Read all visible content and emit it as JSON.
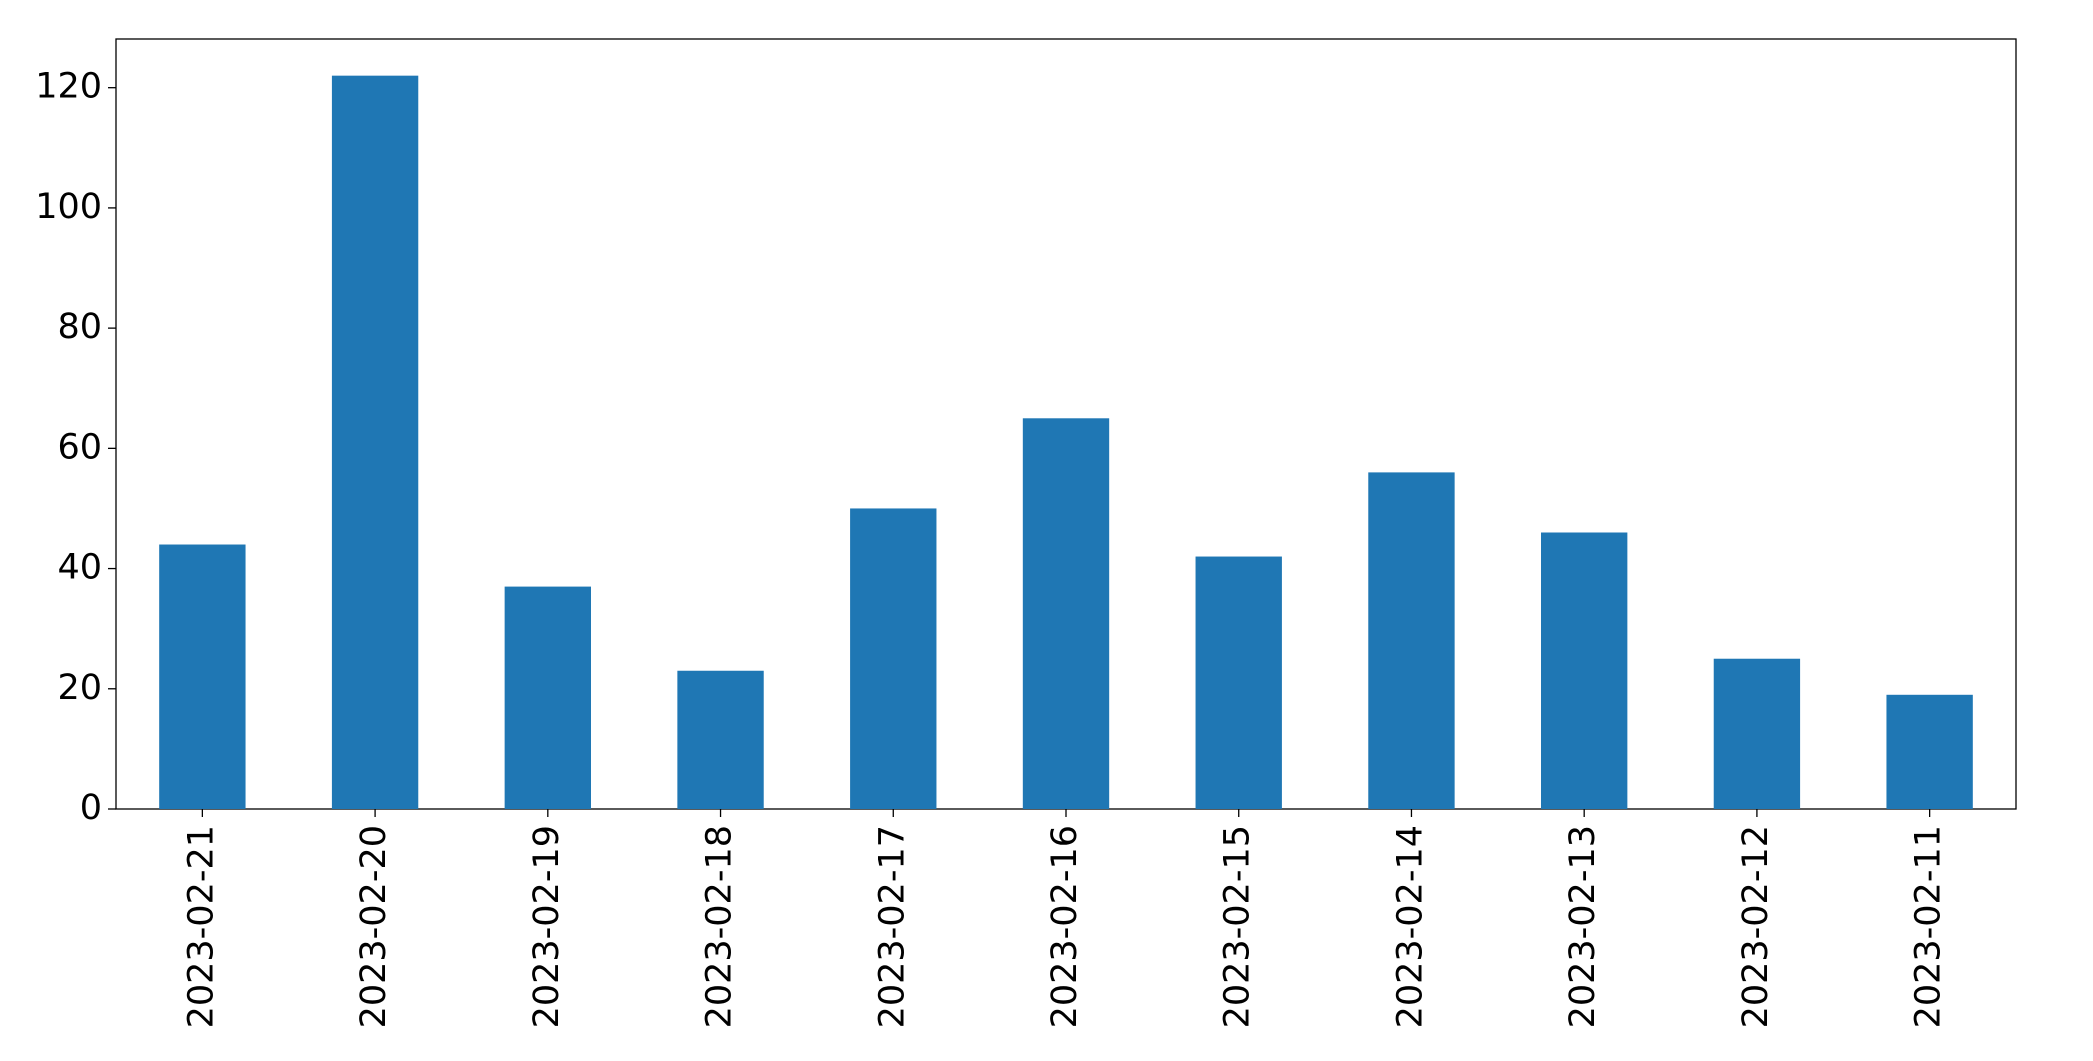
{
  "chart_data": {
    "type": "bar",
    "categories": [
      "2023-02-21",
      "2023-02-20",
      "2023-02-19",
      "2023-02-18",
      "2023-02-17",
      "2023-02-16",
      "2023-02-15",
      "2023-02-14",
      "2023-02-13",
      "2023-02-12",
      "2023-02-11"
    ],
    "values": [
      44,
      122,
      37,
      23,
      50,
      65,
      42,
      56,
      46,
      25,
      19
    ],
    "color": "#1f77b4",
    "ylim": [
      0,
      128.1
    ],
    "yticks": [
      0,
      20,
      40,
      60,
      80,
      100,
      120
    ],
    "grid": false
  }
}
